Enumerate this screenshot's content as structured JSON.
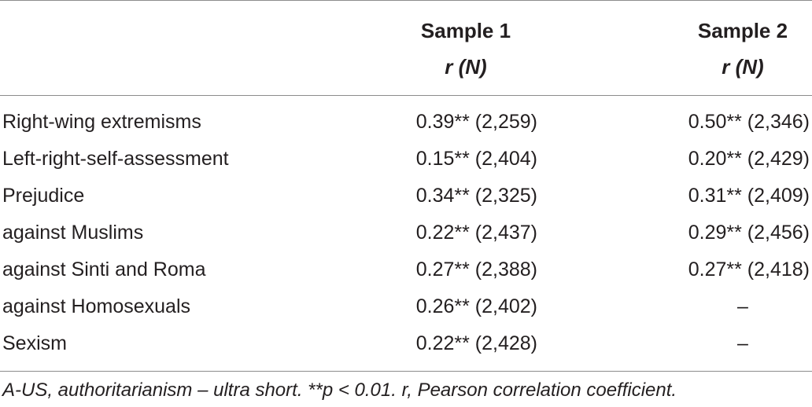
{
  "table": {
    "headers": {
      "sample1": "Sample 1",
      "sample2": "Sample 2",
      "stat1": "r (N)",
      "stat2": "r (N)"
    },
    "rows": [
      {
        "label": "Right-wing extremisms",
        "sample1": "0.39** (2,259)",
        "sample2": "0.50** (2,346)"
      },
      {
        "label": "Left-right-self-assessment",
        "sample1": "0.15** (2,404)",
        "sample2": "0.20** (2,429)"
      },
      {
        "label": "Prejudice",
        "sample1": "0.34** (2,325)",
        "sample2": "0.31** (2,409)"
      },
      {
        "label": "against Muslims",
        "sample1": "0.22** (2,437)",
        "sample2": "0.29** (2,456)"
      },
      {
        "label": "against Sinti and Roma",
        "sample1": "0.27** (2,388)",
        "sample2": "0.27** (2,418)"
      },
      {
        "label": "against Homosexuals",
        "sample1": "0.26** (2,402)",
        "sample2": "–"
      },
      {
        "label": "Sexism",
        "sample1": "0.22** (2,428)",
        "sample2": "–"
      }
    ],
    "footnote": "A-US, authoritarianism – ultra short. **p < 0.01. r, Pearson correlation coefficient."
  }
}
